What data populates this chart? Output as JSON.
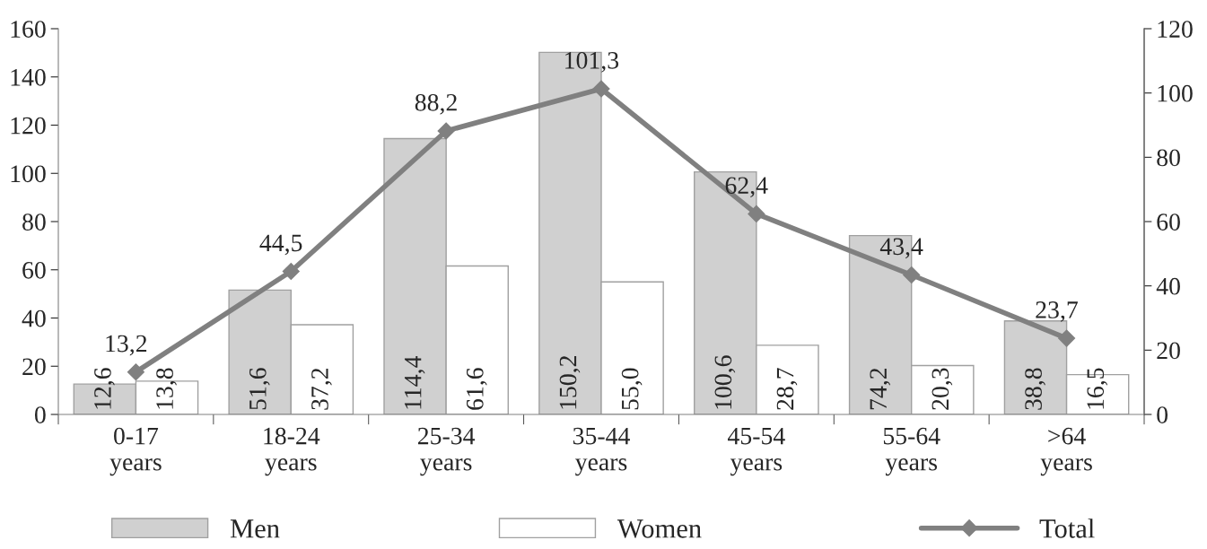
{
  "chart_data": {
    "type": "bar",
    "categories": [
      "0-17\nyears",
      "18-24\nyears",
      "25-34\nyears",
      "35-44\nyears",
      "45-54\nyears",
      "55-64\nyears",
      ">64\nyears"
    ],
    "series": [
      {
        "name": "Men",
        "color": "#d0d0d0",
        "values": [
          12.6,
          51.6,
          114.4,
          150.2,
          100.6,
          74.2,
          38.8
        ],
        "value_labels": [
          "12,6",
          "51,6",
          "114,4",
          "150,2",
          "100,6",
          "74,2",
          "38,8"
        ]
      },
      {
        "name": "Women",
        "color": "#ffffff",
        "values": [
          13.8,
          37.2,
          61.6,
          55.0,
          28.7,
          20.3,
          16.5
        ],
        "value_labels": [
          "13,8",
          "37,2",
          "61,6",
          "55,0",
          "28,7",
          "20,3",
          "16,5"
        ]
      },
      {
        "name": "Total",
        "type": "line",
        "axis": "y2",
        "color": "#808080",
        "marker": "diamond",
        "line_style": "solid",
        "values": [
          13.2,
          44.5,
          88.2,
          101.3,
          62.4,
          43.4,
          23.7
        ],
        "value_labels": [
          "13,2",
          "44,5",
          "88,2",
          "101,3",
          "62,4",
          "43,4",
          "23,7"
        ]
      }
    ],
    "ylim": [
      0,
      160
    ],
    "yticks": [
      0,
      20,
      40,
      60,
      80,
      100,
      120,
      140,
      160
    ],
    "y2lim": [
      0,
      120
    ],
    "y2ticks": [
      0,
      20,
      40,
      60,
      80,
      100,
      120
    ],
    "grid": false,
    "legend": "bottom"
  }
}
